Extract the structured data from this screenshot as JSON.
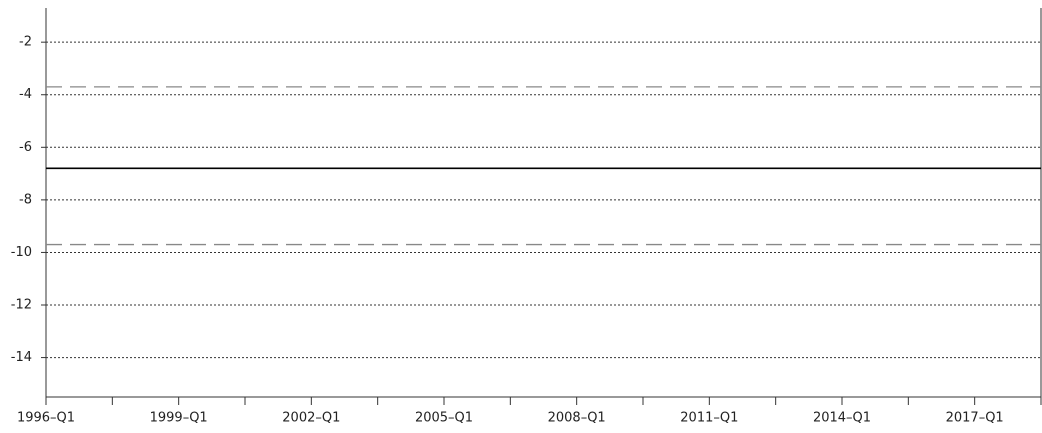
{
  "chart_data": {
    "type": "line",
    "categories": [
      "1996–Q1",
      null,
      "1999–Q1",
      null,
      "2002–Q1",
      null,
      "2005–Q1",
      null,
      "2008–Q1",
      null,
      "2011–Q1",
      null,
      "2014–Q1",
      null,
      "2017–Q1",
      null
    ],
    "series": [
      {
        "color": "#888888",
        "dashed": true,
        "values": [
          -3.7,
          -3.7,
          -3.7,
          -3.7,
          -3.7,
          -3.7,
          -3.7,
          -3.7,
          -3.7,
          -3.7,
          -3.7,
          -3.7,
          -3.7,
          -3.7,
          -3.7,
          -3.7
        ]
      },
      {
        "color": "#000000",
        "dashed": false,
        "values": [
          -6.8,
          -6.8,
          -6.8,
          -6.8,
          -6.8,
          -6.8,
          -6.8,
          -6.8,
          -6.8,
          -6.8,
          -6.8,
          -6.8,
          -6.8,
          -6.8,
          -6.8,
          -6.8
        ]
      },
      {
        "color": "#888888",
        "dashed": true,
        "values": [
          -9.7,
          -9.7,
          -9.7,
          -9.7,
          -9.7,
          -9.7,
          -9.7,
          -9.7,
          -9.7,
          -9.7,
          -9.7,
          -9.7,
          -9.7,
          -9.7,
          -9.7,
          -9.7
        ]
      }
    ],
    "ylim": [
      -15.5,
      -0.7
    ],
    "yticks": [
      -14,
      -12,
      -10,
      -8,
      -6,
      -4,
      -2
    ],
    "grid": true
  }
}
